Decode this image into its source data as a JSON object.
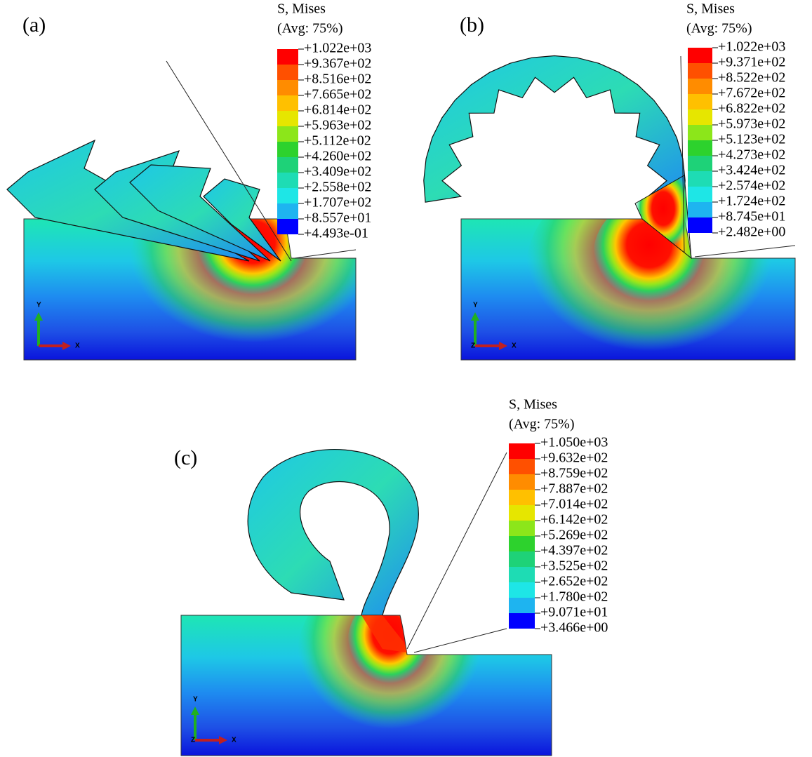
{
  "panels": [
    {
      "label": "(a)",
      "legend_title": [
        "S, Mises",
        "(Avg: 75%)"
      ],
      "legend_values": [
        "+1.022e+03",
        "+9.367e+02",
        "+8.516e+02",
        "+7.665e+02",
        "+6.814e+02",
        "+5.963e+02",
        "+5.112e+02",
        "+4.260e+02",
        "+3.409e+02",
        "+2.558e+02",
        "+1.707e+02",
        "+8.557e+01",
        "+4.493e-01"
      ],
      "triad": [
        "Y",
        "X"
      ]
    },
    {
      "label": "(b)",
      "legend_title": [
        "S, Mises",
        "(Avg: 75%)"
      ],
      "legend_values": [
        "+1.022e+03",
        "+9.371e+02",
        "+8.522e+02",
        "+7.672e+02",
        "+6.822e+02",
        "+5.973e+02",
        "+5.123e+02",
        "+4.273e+02",
        "+3.424e+02",
        "+2.574e+02",
        "+1.724e+02",
        "+8.745e+01",
        "+2.482e+00"
      ],
      "triad": [
        "Y",
        "Z",
        "X"
      ]
    },
    {
      "label": "(c)",
      "legend_title": [
        "S, Mises",
        "(Avg: 75%)"
      ],
      "legend_values": [
        "+1.050e+03",
        "+9.632e+02",
        "+8.759e+02",
        "+7.887e+02",
        "+7.014e+02",
        "+6.142e+02",
        "+5.269e+02",
        "+4.397e+02",
        "+3.525e+02",
        "+2.652e+02",
        "+1.780e+02",
        "+9.071e+01",
        "+3.466e+00"
      ],
      "triad": [
        "Y",
        "Z",
        "X"
      ]
    }
  ]
}
